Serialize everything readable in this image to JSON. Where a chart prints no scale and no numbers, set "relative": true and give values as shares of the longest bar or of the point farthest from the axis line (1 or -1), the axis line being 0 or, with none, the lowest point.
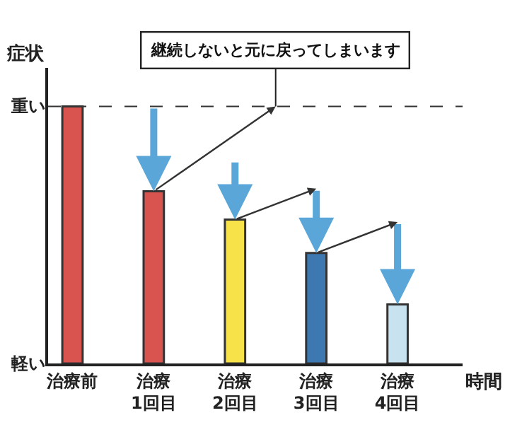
{
  "chart_data": {
    "type": "bar",
    "relative": true,
    "categories": [
      "治療前",
      "治療\n1回目",
      "治療\n2回目",
      "治療\n3回目",
      "治療\n4回目"
    ],
    "values": [
      1,
      0.67,
      0.56,
      0.43,
      0.23
    ],
    "colors": [
      "#d9534f",
      "#d9534f",
      "#f7e24a",
      "#3d78b0",
      "#c8e3ef"
    ],
    "ylabel": "症状",
    "xlabel": "時間",
    "annotations": [
      "継続しないと元に戻ってしまいます",
      "重い",
      "軽い"
    ],
    "ref_lines": [
      {
        "axis": "y",
        "value": 1,
        "color": "#333333",
        "line_style": "dashed"
      }
    ]
  }
}
